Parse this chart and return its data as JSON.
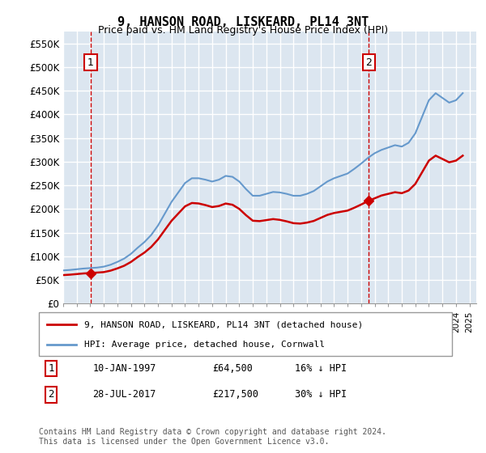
{
  "title": "9, HANSON ROAD, LISKEARD, PL14 3NT",
  "subtitle": "Price paid vs. HM Land Registry's House Price Index (HPI)",
  "ylabel": "",
  "xlabel": "",
  "ylim": [
    0,
    575000
  ],
  "yticks": [
    0,
    50000,
    100000,
    150000,
    200000,
    250000,
    300000,
    350000,
    400000,
    450000,
    500000,
    550000
  ],
  "ytick_labels": [
    "£0",
    "£50K",
    "£100K",
    "£150K",
    "£200K",
    "£250K",
    "£300K",
    "£350K",
    "£400K",
    "£450K",
    "£500K",
    "£550K"
  ],
  "xlim_start": 1995.0,
  "xlim_end": 2025.5,
  "sale1_year": 1997.03,
  "sale1_price": 64500,
  "sale2_year": 2017.57,
  "sale2_price": 217500,
  "red_color": "#cc0000",
  "blue_color": "#6699cc",
  "dashed_color": "#cc0000",
  "bg_color": "#dce6f0",
  "plot_bg": "#dce6f0",
  "grid_color": "#ffffff",
  "legend_label_red": "9, HANSON ROAD, LISKEARD, PL14 3NT (detached house)",
  "legend_label_blue": "HPI: Average price, detached house, Cornwall",
  "annotation1_label": "1",
  "annotation2_label": "2",
  "table_row1": [
    "1",
    "10-JAN-1997",
    "£64,500",
    "16% ↓ HPI"
  ],
  "table_row2": [
    "2",
    "28-JUL-2017",
    "£217,500",
    "30% ↓ HPI"
  ],
  "footer": "Contains HM Land Registry data © Crown copyright and database right 2024.\nThis data is licensed under the Open Government Licence v3.0.",
  "hpi_years": [
    1995.0,
    1995.5,
    1996.0,
    1996.5,
    1997.0,
    1997.5,
    1998.0,
    1998.5,
    1999.0,
    1999.5,
    2000.0,
    2000.5,
    2001.0,
    2001.5,
    2002.0,
    2002.5,
    2003.0,
    2003.5,
    2004.0,
    2004.5,
    2005.0,
    2005.5,
    2006.0,
    2006.5,
    2007.0,
    2007.5,
    2008.0,
    2008.5,
    2009.0,
    2009.5,
    2010.0,
    2010.5,
    2011.0,
    2011.5,
    2012.0,
    2012.5,
    2013.0,
    2013.5,
    2014.0,
    2014.5,
    2015.0,
    2015.5,
    2016.0,
    2016.5,
    2017.0,
    2017.5,
    2018.0,
    2018.5,
    2019.0,
    2019.5,
    2020.0,
    2020.5,
    2021.0,
    2021.5,
    2022.0,
    2022.5,
    2023.0,
    2023.5,
    2024.0,
    2024.5
  ],
  "hpi_values": [
    70000,
    71000,
    72500,
    74000,
    75000,
    76000,
    78000,
    82000,
    88000,
    95000,
    105000,
    118000,
    130000,
    145000,
    165000,
    190000,
    215000,
    235000,
    255000,
    265000,
    265000,
    262000,
    258000,
    262000,
    270000,
    268000,
    258000,
    242000,
    228000,
    228000,
    232000,
    236000,
    235000,
    232000,
    228000,
    228000,
    232000,
    238000,
    248000,
    258000,
    265000,
    270000,
    275000,
    285000,
    296000,
    308000,
    318000,
    325000,
    330000,
    335000,
    332000,
    340000,
    360000,
    395000,
    430000,
    445000,
    435000,
    425000,
    430000,
    445000
  ]
}
